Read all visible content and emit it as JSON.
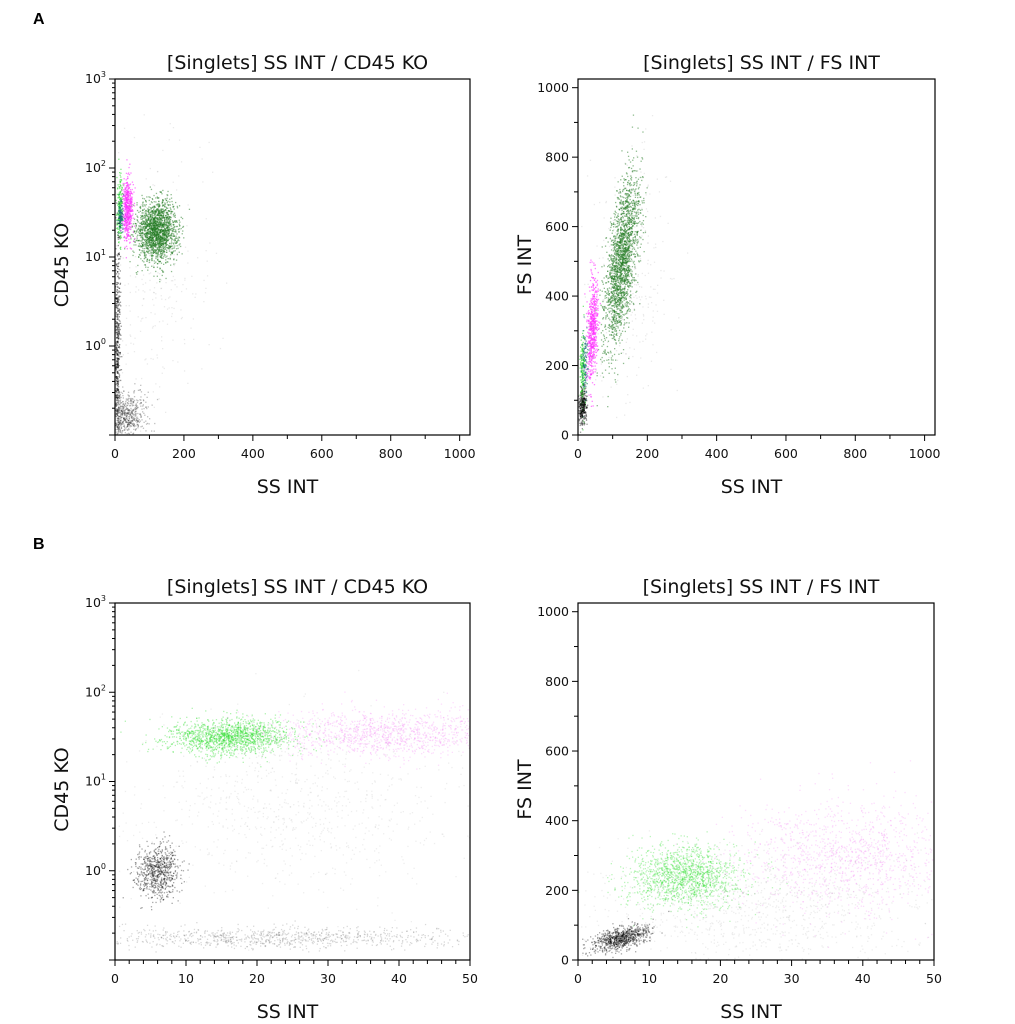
{
  "panels": [
    {
      "label": "A"
    },
    {
      "label": "B"
    }
  ],
  "chart_data": [
    {
      "type": "scatter",
      "panel": "A",
      "title": "[Singlets] SS INT / CD45 KO",
      "xlabel": "SS INT",
      "ylabel": "CD45 KO",
      "xscale": "linear",
      "yscale": "log",
      "xlim": [
        0,
        1030
      ],
      "ylim": [
        0.1,
        1000
      ],
      "xticks": [
        0,
        200,
        400,
        600,
        800,
        1000
      ],
      "xtick_labels": [
        "0",
        "200",
        "400",
        "600",
        "800",
        "1000"
      ],
      "yticks": [
        1,
        10,
        100,
        1000
      ],
      "ytick_labels": [
        {
          "base": "10",
          "exp": "0"
        },
        {
          "base": "10",
          "exp": "1"
        },
        {
          "base": "10",
          "exp": "2"
        },
        {
          "base": "10",
          "exp": "3"
        }
      ],
      "grid": false,
      "populations": [
        {
          "color": "#1f7a1f",
          "count": 1800,
          "x_mean": 120,
          "x_sd": 30,
          "y_center": 20,
          "y_log_sd": 0.17,
          "opacity": 0.5
        },
        {
          "color": "#ff33ff",
          "count": 500,
          "x_mean": 35,
          "x_sd": 7,
          "y_center": 35,
          "y_log_sd": 0.17,
          "opacity": 0.6
        },
        {
          "color": "#33dd33",
          "count": 200,
          "x_mean": 12,
          "x_sd": 4,
          "y_center": 35,
          "y_log_sd": 0.18,
          "opacity": 0.6
        },
        {
          "color": "#1a6b7a",
          "count": 100,
          "x_mean": 15,
          "x_sd": 4,
          "y_center": 30,
          "y_log_sd": 0.1,
          "opacity": 0.6
        },
        {
          "color": "#000000",
          "count": 500,
          "x_mean": 6,
          "x_sd": 4,
          "y_center": 1,
          "y_log_sd": 0.6,
          "opacity": 0.4
        },
        {
          "color": "#000000",
          "count": 600,
          "x_mean": 30,
          "x_sd": 30,
          "y_center": 0.17,
          "y_log_sd": 0.12,
          "opacity": 0.25
        },
        {
          "color": "#555555",
          "count": 300,
          "x_mean": 100,
          "x_sd": 100,
          "y_center": 5,
          "y_log_sd": 0.7,
          "opacity": 0.12
        }
      ]
    },
    {
      "type": "scatter",
      "panel": "A",
      "title": "[Singlets] SS INT / FS INT",
      "xlabel": "SS INT",
      "ylabel": "FS INT",
      "xscale": "linear",
      "yscale": "linear",
      "xlim": [
        0,
        1030
      ],
      "ylim": [
        0,
        1025
      ],
      "xticks": [
        0,
        200,
        400,
        600,
        800,
        1000
      ],
      "xtick_labels": [
        "0",
        "200",
        "400",
        "600",
        "800",
        "1000"
      ],
      "yticks": [
        0,
        200,
        400,
        600,
        800,
        1000
      ],
      "ytick_labels": [
        "0",
        "200",
        "400",
        "600",
        "800",
        "1000"
      ],
      "grid": false,
      "populations": [
        {
          "color": "#1f7a1f",
          "count": 2000,
          "x_mean": 125,
          "x_sd": 25,
          "y_mean": 500,
          "y_sd": 100,
          "slope": 3,
          "opacity": 0.5
        },
        {
          "color": "#ff33ff",
          "count": 600,
          "x_mean": 40,
          "x_sd": 8,
          "y_mean": 300,
          "y_sd": 70,
          "slope": 3,
          "opacity": 0.6
        },
        {
          "color": "#33dd33",
          "count": 200,
          "x_mean": 12,
          "x_sd": 4,
          "y_mean": 180,
          "y_sd": 60,
          "opacity": 0.6
        },
        {
          "color": "#1a6b7a",
          "count": 100,
          "x_mean": 18,
          "x_sd": 4,
          "y_mean": 200,
          "y_sd": 50,
          "opacity": 0.6
        },
        {
          "color": "#000000",
          "count": 300,
          "x_mean": 12,
          "x_sd": 6,
          "y_mean": 80,
          "y_sd": 25,
          "opacity": 0.4
        },
        {
          "color": "#555555",
          "count": 300,
          "x_mean": 150,
          "x_sd": 60,
          "y_mean": 450,
          "y_sd": 180,
          "opacity": 0.12
        }
      ]
    },
    {
      "type": "scatter",
      "panel": "B",
      "title": "[Singlets] SS INT / CD45 KO",
      "xlabel": "SS INT",
      "ylabel": "CD45 KO",
      "xscale": "linear",
      "yscale": "log",
      "xlim": [
        0,
        50
      ],
      "ylim": [
        0.1,
        1000
      ],
      "xticks": [
        0,
        10,
        20,
        30,
        40,
        50
      ],
      "xtick_labels": [
        "0",
        "10",
        "20",
        "30",
        "40",
        "50"
      ],
      "yticks": [
        1,
        10,
        100,
        1000
      ],
      "ytick_labels": [
        {
          "base": "10",
          "exp": "0"
        },
        {
          "base": "10",
          "exp": "1"
        },
        {
          "base": "10",
          "exp": "2"
        },
        {
          "base": "10",
          "exp": "3"
        }
      ],
      "grid": false,
      "populations": [
        {
          "color": "#22dd22",
          "count": 1500,
          "x_mean": 16,
          "x_sd": 4.5,
          "y_center": 32,
          "y_log_sd": 0.1,
          "opacity": 0.35
        },
        {
          "color": "#ee55ee",
          "count": 1200,
          "x_mean": 38,
          "x_sd": 8,
          "y_center": 35,
          "y_log_sd": 0.13,
          "opacity": 0.2
        },
        {
          "color": "#000000",
          "count": 700,
          "x_mean": 6,
          "x_sd": 1.5,
          "y_center": 1,
          "y_log_sd": 0.15,
          "opacity": 0.35
        },
        {
          "color": "#000000",
          "count": 900,
          "x_mean": 22,
          "x_sd": 14,
          "y_center": 0.18,
          "y_log_sd": 0.06,
          "opacity": 0.15
        },
        {
          "color": "#555555",
          "count": 800,
          "x_mean": 25,
          "x_sd": 12,
          "y_center": 5,
          "y_log_sd": 0.5,
          "opacity": 0.1
        }
      ]
    },
    {
      "type": "scatter",
      "panel": "B",
      "title": "[Singlets] SS INT / FS INT",
      "xlabel": "SS INT",
      "ylabel": "FS INT",
      "xscale": "linear",
      "yscale": "linear",
      "xlim": [
        0,
        50
      ],
      "ylim": [
        0,
        1025
      ],
      "xticks": [
        0,
        10,
        20,
        30,
        40,
        50
      ],
      "xtick_labels": [
        "0",
        "10",
        "20",
        "30",
        "40",
        "50"
      ],
      "yticks": [
        0,
        200,
        400,
        600,
        800,
        1000
      ],
      "ytick_labels": [
        "0",
        "200",
        "400",
        "600",
        "800",
        "1000"
      ],
      "grid": false,
      "populations": [
        {
          "color": "#22dd22",
          "count": 1500,
          "x_mean": 15,
          "x_sd": 4,
          "y_mean": 240,
          "y_sd": 45,
          "opacity": 0.3
        },
        {
          "color": "#ee55ee",
          "count": 1200,
          "x_mean": 37,
          "x_sd": 8,
          "y_mean": 300,
          "y_sd": 80,
          "opacity": 0.2
        },
        {
          "color": "#000000",
          "count": 800,
          "x_mean": 6,
          "x_sd": 2,
          "y_mean": 65,
          "y_sd": 15,
          "slope": 5,
          "opacity": 0.35
        },
        {
          "color": "#555555",
          "count": 1000,
          "x_mean": 25,
          "x_sd": 12,
          "y_mean": 150,
          "y_sd": 80,
          "opacity": 0.1
        }
      ]
    }
  ]
}
